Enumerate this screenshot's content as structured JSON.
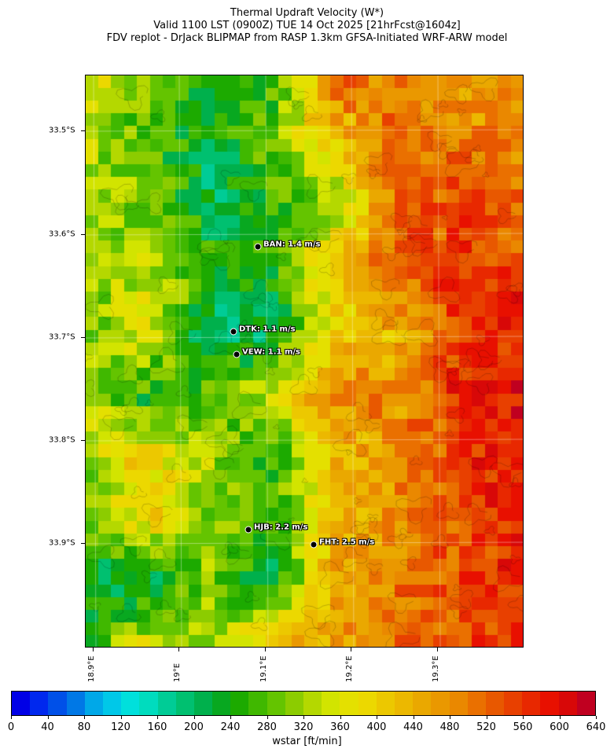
{
  "title": {
    "line1": "Thermal Updraft Velocity (W*)",
    "line2": "Valid 1100 LST (0900Z) TUE 14 Oct 2025 [21hrFcst@1604z]",
    "line3": "FDV replot - DrJack BLIPMAP from RASP 1.3km GFSA-Initiated WRF-ARW model"
  },
  "map": {
    "lat_labels": [
      "33.5°S",
      "33.6°S",
      "33.7°S",
      "33.8°S",
      "33.9°S"
    ],
    "lon_labels": [
      "18.9°E",
      "19°E",
      "19.1°E",
      "19.2°E",
      "19.3°E"
    ],
    "stations": [
      {
        "label": "BAN: 1.4 m/s"
      },
      {
        "label": "DTK: 1.1 m/s"
      },
      {
        "label": "VEW: 1.1 m/s"
      },
      {
        "label": "HJB: 2.2 m/s"
      },
      {
        "label": "FHT: 2.5 m/s"
      }
    ]
  },
  "colorbar": {
    "label": "wstar [ft/min]",
    "ticks": [
      "0",
      "40",
      "80",
      "120",
      "160",
      "200",
      "240",
      "280",
      "320",
      "360",
      "400",
      "440",
      "480",
      "520",
      "560",
      "600",
      "640"
    ],
    "range": [
      0,
      640
    ],
    "step": 20,
    "colors": [
      "#0000e6",
      "#0028ee",
      "#0050e8",
      "#0078e6",
      "#00a8e8",
      "#00c8e8",
      "#00e0dc",
      "#00dcbe",
      "#00cc96",
      "#00c070",
      "#00b04c",
      "#08a820",
      "#1caa00",
      "#40b800",
      "#64c400",
      "#8ccc00",
      "#b4d800",
      "#d2e400",
      "#e4e000",
      "#ecd800",
      "#ecc800",
      "#ecb800",
      "#eaa800",
      "#ea9800",
      "#ea8800",
      "#ea7000",
      "#e85800",
      "#e84000",
      "#e82800",
      "#e81000",
      "#d80808",
      "#c00020"
    ]
  }
}
